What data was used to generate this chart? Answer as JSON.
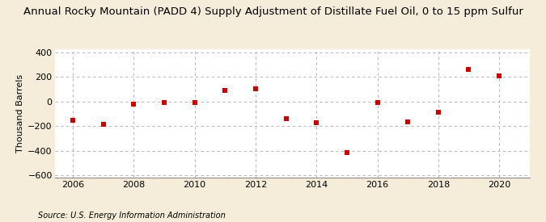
{
  "title": "Annual Rocky Mountain (PADD 4) Supply Adjustment of Distillate Fuel Oil, 0 to 15 ppm Sulfur",
  "ylabel": "Thousand Barrels",
  "source": "Source: U.S. Energy Information Administration",
  "years": [
    2006,
    2007,
    2008,
    2009,
    2010,
    2011,
    2012,
    2013,
    2014,
    2015,
    2016,
    2017,
    2018,
    2019,
    2020
  ],
  "values": [
    -150,
    -185,
    -20,
    -10,
    -5,
    90,
    105,
    -140,
    -170,
    -415,
    -10,
    -165,
    -90,
    260,
    210
  ],
  "marker_color": "#CC0000",
  "marker": "s",
  "marker_size": 4,
  "ylim": [
    -620,
    430
  ],
  "yticks": [
    -600,
    -400,
    -200,
    0,
    200,
    400
  ],
  "xlim": [
    2005.4,
    2021.0
  ],
  "xticks": [
    2006,
    2008,
    2010,
    2012,
    2014,
    2016,
    2018,
    2020
  ],
  "bg_color": "#F5EDD9",
  "plot_bg_color": "#FFFFFF",
  "grid_color": "#AAAAAA",
  "title_fontsize": 9.5,
  "label_fontsize": 8,
  "tick_fontsize": 8,
  "source_fontsize": 7
}
